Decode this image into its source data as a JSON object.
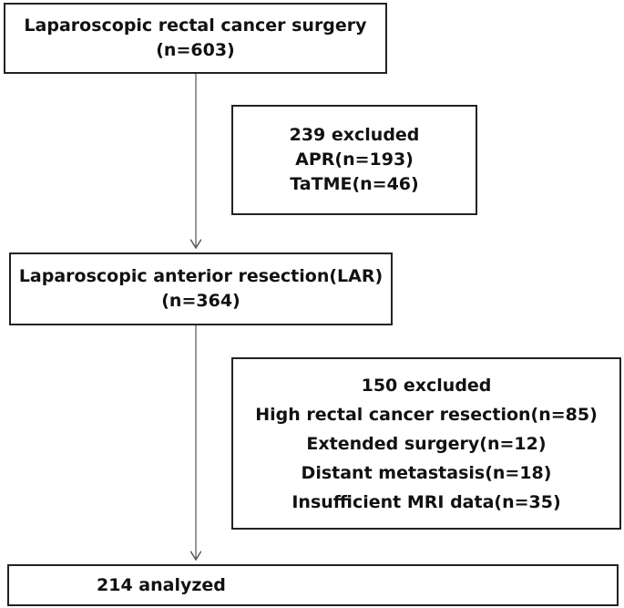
{
  "nodes": [
    {
      "lines": [
        "Laparoscopic rectal cancer surgery",
        "(n=603)"
      ]
    },
    {
      "lines": [
        "239 excluded",
        "APR(n=193)",
        "TaTME(n=46)"
      ]
    },
    {
      "lines": [
        "Laparoscopic anterior resection(LAR)",
        "(n=364)"
      ]
    },
    {
      "lines": [
        "150 excluded",
        "High rectal cancer resection(n=85)",
        "Extended surgery(n=12)",
        "Distant metastasis(n=18)",
        "Insufficient MRI data(n=35)"
      ]
    },
    {
      "lines": [
        "214 analyzed"
      ]
    }
  ]
}
